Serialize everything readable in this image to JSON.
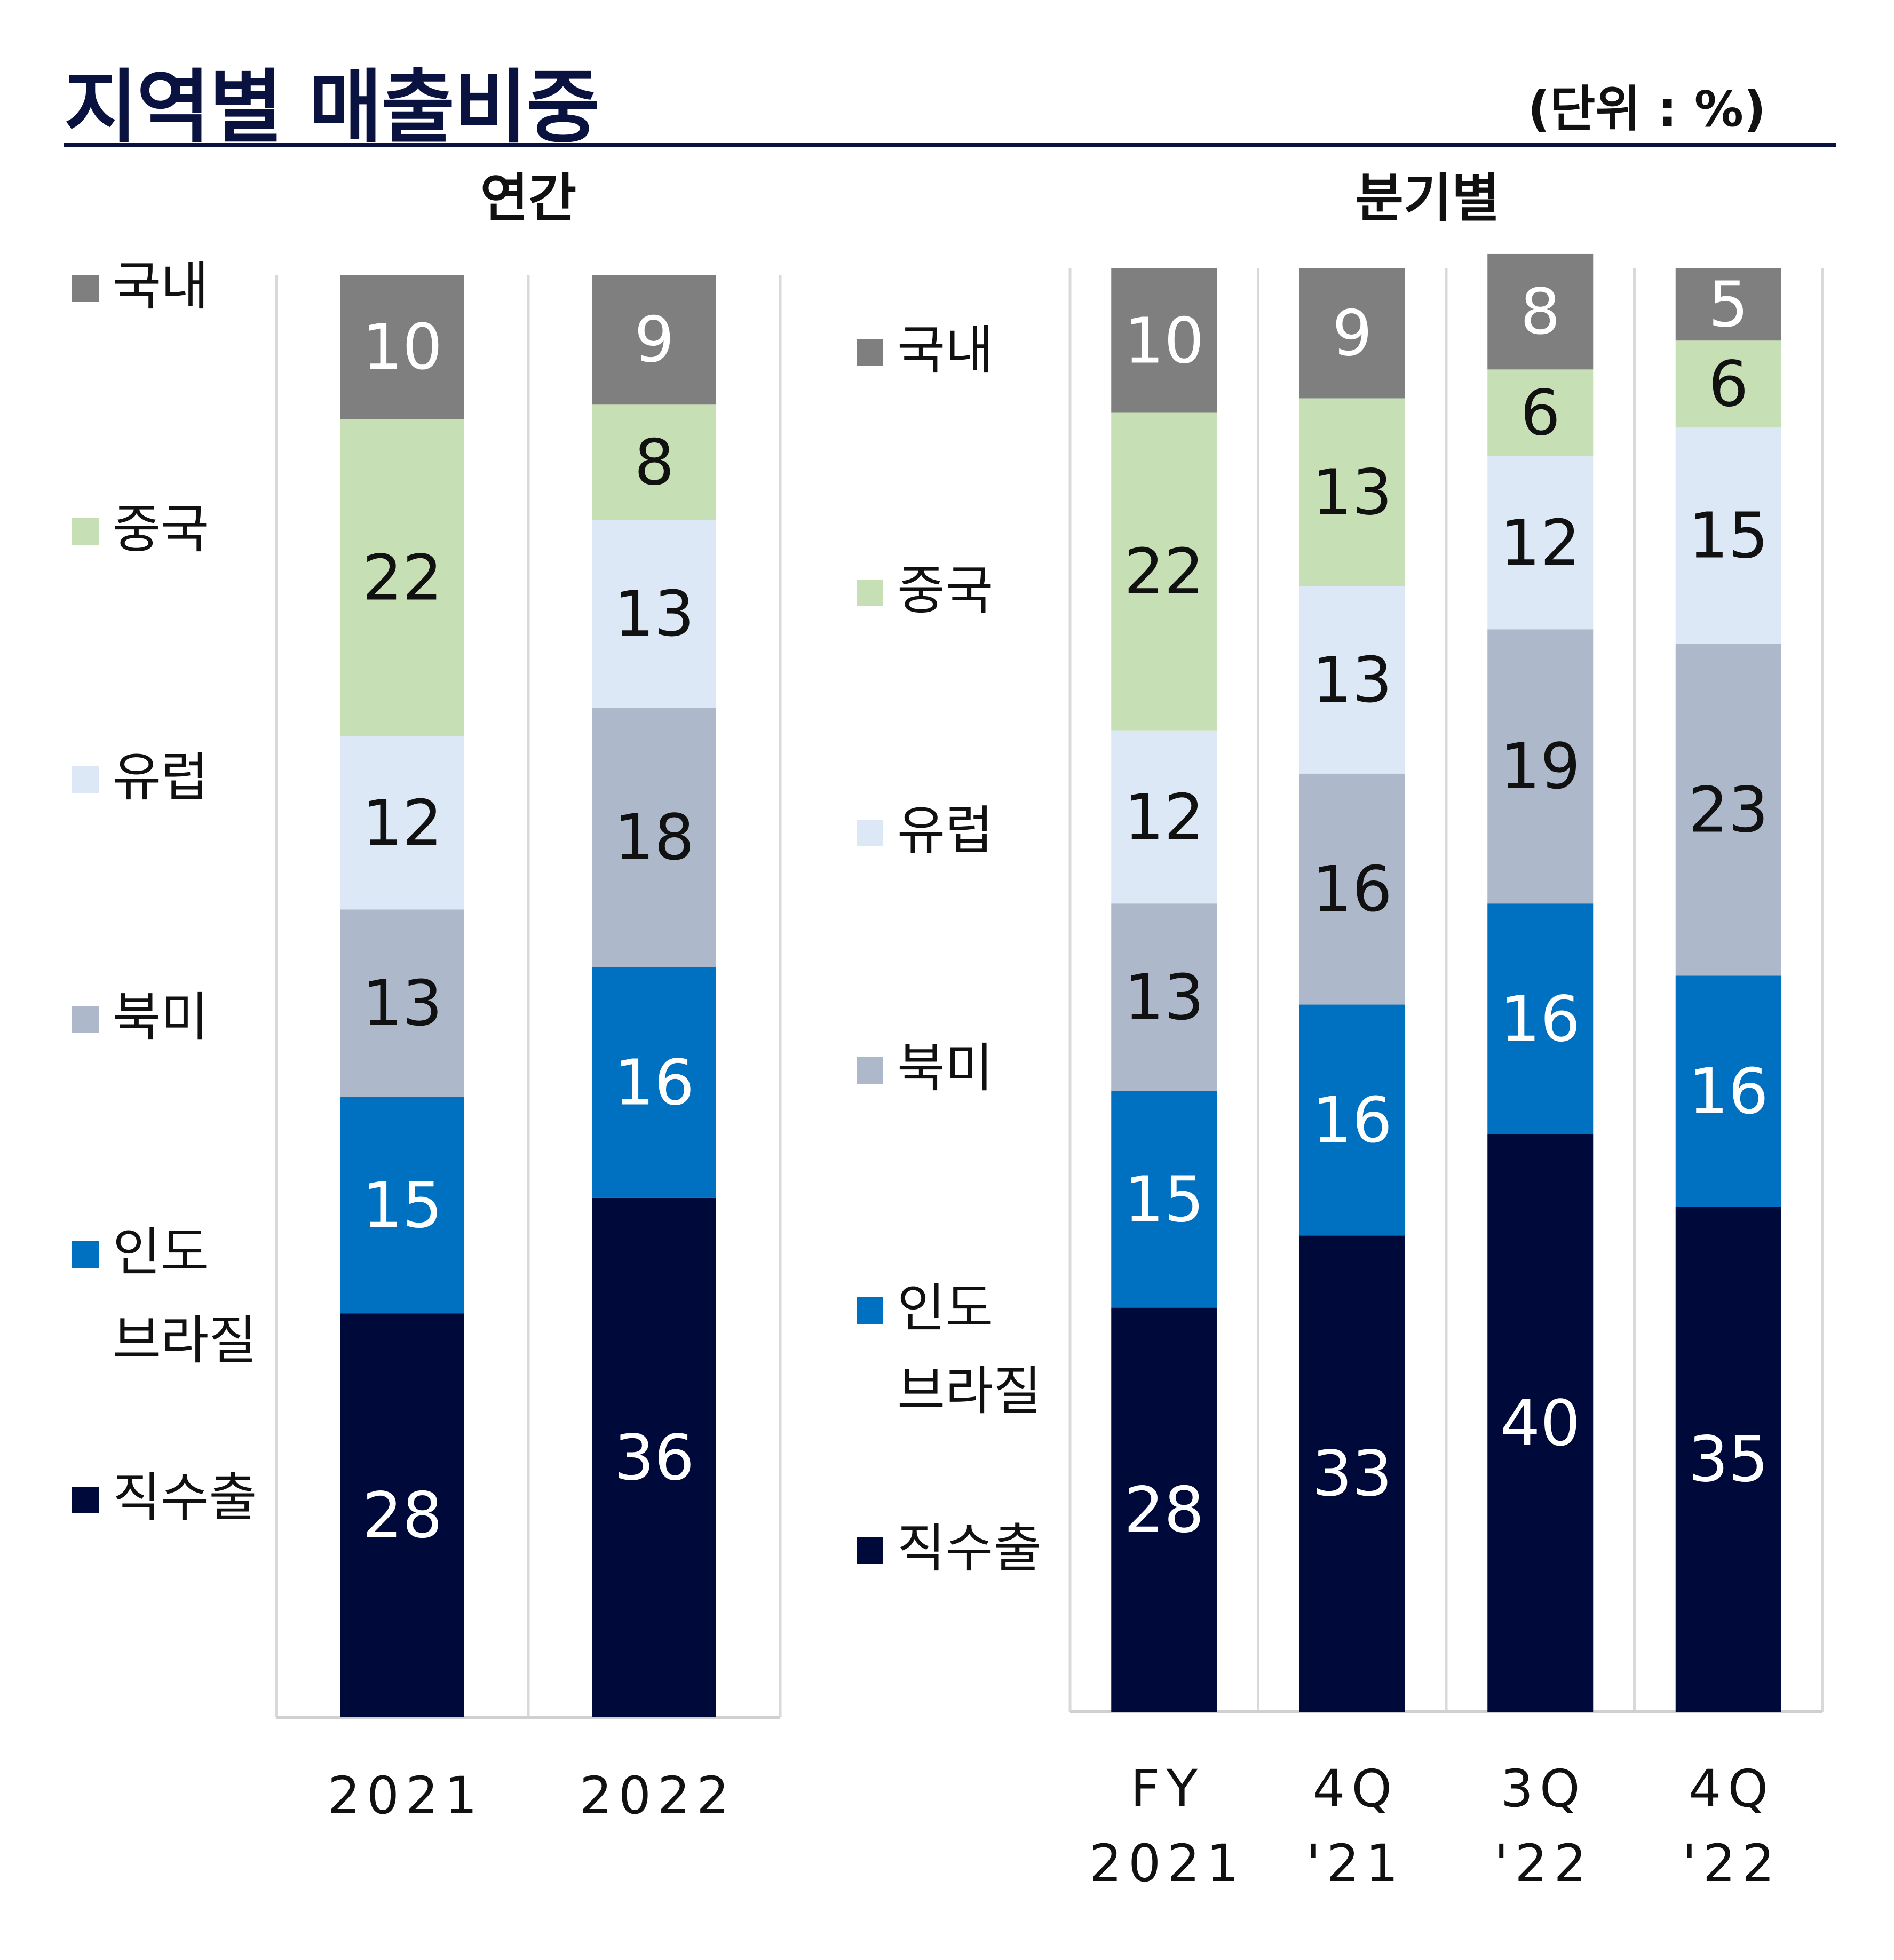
{
  "title": "지역별 매출비중",
  "unit": "(단위 : %)",
  "colors": {
    "국내": "#7f7f7f",
    "중국": "#c6dfb4",
    "유럽": "#dce8f5",
    "북미": "#adb8cb",
    "인도 브라질": "#0070c0",
    "직수출": "#000a3a"
  },
  "chart_data": [
    {
      "type": "bar",
      "stacked": true,
      "title": "연간",
      "categories": [
        [
          "2021"
        ],
        [
          "2022"
        ]
      ],
      "series": [
        {
          "name": "직수출",
          "legend_lines": [
            "직수출"
          ],
          "values": [
            28,
            36
          ]
        },
        {
          "name": "인도 브라질",
          "legend_lines": [
            "인도",
            "브라질"
          ],
          "values": [
            15,
            16
          ]
        },
        {
          "name": "북미",
          "legend_lines": [
            "북미"
          ],
          "values": [
            13,
            18
          ]
        },
        {
          "name": "유럽",
          "legend_lines": [
            "유럽"
          ],
          "values": [
            12,
            13
          ]
        },
        {
          "name": "중국",
          "legend_lines": [
            "중국"
          ],
          "values": [
            22,
            8
          ]
        },
        {
          "name": "국내",
          "legend_lines": [
            "국내"
          ],
          "values": [
            10,
            9
          ]
        }
      ],
      "legend_position": "left",
      "ylim": [
        0,
        100
      ]
    },
    {
      "type": "bar",
      "stacked": true,
      "title": "분기별",
      "categories": [
        [
          "FY",
          "2021"
        ],
        [
          "4Q",
          "'21"
        ],
        [
          "3Q",
          "'22"
        ],
        [
          "4Q",
          "'22"
        ]
      ],
      "series": [
        {
          "name": "직수출",
          "legend_lines": [
            "직수출"
          ],
          "values": [
            28,
            33,
            40,
            35
          ]
        },
        {
          "name": "인도 브라질",
          "legend_lines": [
            "인도",
            "브라질"
          ],
          "values": [
            15,
            16,
            16,
            16
          ]
        },
        {
          "name": "북미",
          "legend_lines": [
            "북미"
          ],
          "values": [
            13,
            16,
            19,
            23
          ]
        },
        {
          "name": "유럽",
          "legend_lines": [
            "유럽"
          ],
          "values": [
            12,
            13,
            12,
            15
          ]
        },
        {
          "name": "중국",
          "legend_lines": [
            "중국"
          ],
          "values": [
            22,
            13,
            6,
            6
          ]
        },
        {
          "name": "국내",
          "legend_lines": [
            "국내"
          ],
          "values": [
            10,
            9,
            8,
            5
          ]
        }
      ],
      "legend_position": "left",
      "ylim": [
        0,
        100
      ]
    }
  ]
}
